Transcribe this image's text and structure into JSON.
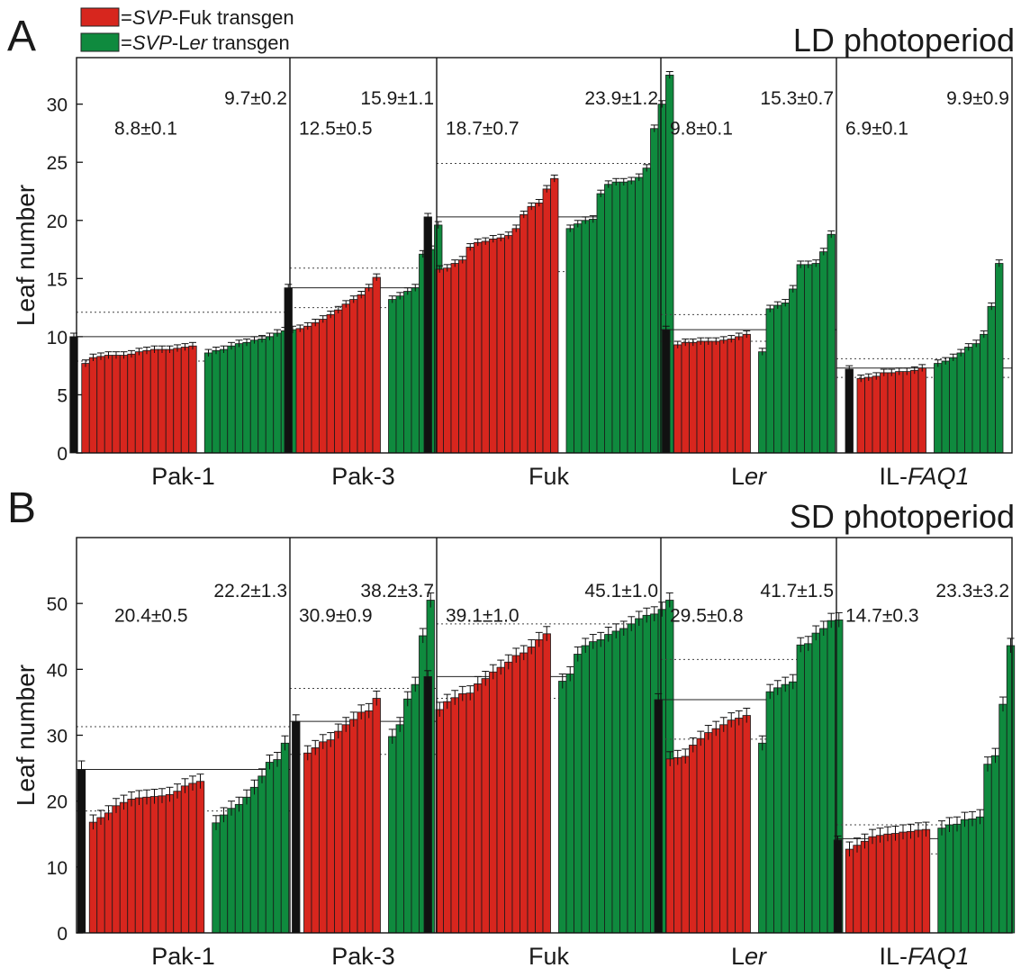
{
  "legend": {
    "items": [
      {
        "prefix": "=",
        "italic": "SVP",
        "mid": "-Fuk transgen",
        "italic2": "",
        "suffix": "",
        "color": "#d7261e"
      },
      {
        "prefix": "=",
        "italic": "SVP",
        "mid": "-L",
        "italic2": "er",
        "suffix": " transgen",
        "color": "#0f8a3e"
      }
    ]
  },
  "colors": {
    "parent": "#111111",
    "fuk_transgene": "#d7261e",
    "ler_transgene": "#0f8a3e"
  },
  "chart_data": [
    {
      "panel_letter": "A",
      "title": "LD photoperiod",
      "type": "bar",
      "ylabel": "Leaf number",
      "ylim": [
        0,
        34
      ],
      "yticks": [
        0,
        5,
        10,
        15,
        20,
        25,
        30
      ],
      "groups": [
        {
          "name": "Pak-1",
          "name_plain": "Pak-1",
          "name_italic": "",
          "parent": 10.0,
          "parent_err": 0.3,
          "ann_red": "8.8±0.1",
          "ann_green": "9.7±0.2",
          "parent_line": 10.0,
          "dotted_lines": [
            12.1,
            7.9
          ],
          "fuk_transgene": [
            7.7,
            8.2,
            8.3,
            8.4,
            8.4,
            8.4,
            8.5,
            8.7,
            8.8,
            8.9,
            8.9,
            8.9,
            9.0,
            9.1,
            9.2
          ],
          "ler_transgene": [
            8.6,
            8.8,
            8.9,
            9.2,
            9.4,
            9.5,
            9.7,
            9.8,
            10.0,
            10.3,
            10.5,
            10.6
          ]
        },
        {
          "name": "Pak-3",
          "name_plain": "Pak-3",
          "name_italic": "",
          "parent": 14.2,
          "parent_err": 0.3,
          "ann_red": "12.5±0.5",
          "ann_green": "15.9±1.1",
          "parent_line": 14.2,
          "dotted_lines": [
            15.9,
            12.5
          ],
          "fuk_transgene": [
            10.7,
            10.9,
            11.2,
            11.5,
            11.9,
            12.3,
            12.8,
            13.2,
            13.6,
            14.2,
            15.1
          ],
          "ler_transgene": [
            13.2,
            13.5,
            13.9,
            14.2,
            17.1,
            17.5,
            19.6
          ]
        },
        {
          "name": "Fuk",
          "name_plain": "Fuk",
          "name_italic": "",
          "parent": 20.3,
          "parent_err": 0.3,
          "ann_red": "18.7±0.7",
          "ann_green": "23.9±1.2",
          "parent_line": 20.3,
          "dotted_lines": [
            24.9,
            15.6
          ],
          "fuk_transgene": [
            15.8,
            15.9,
            16.3,
            16.6,
            17.7,
            18.1,
            18.2,
            18.4,
            18.5,
            18.7,
            19.3,
            20.5,
            21.2,
            21.5,
            22.7,
            23.6
          ],
          "ler_transgene": [
            19.3,
            19.7,
            20.0,
            20.1,
            22.3,
            23.1,
            23.3,
            23.3,
            23.4,
            23.7,
            24.5,
            27.9,
            30.0,
            32.5
          ]
        },
        {
          "name": "Ler",
          "name_plain": "L",
          "name_italic": "er",
          "parent": 10.6,
          "parent_err": 0.3,
          "ann_red": "9.8±0.1",
          "ann_green": "15.3±0.7",
          "parent_line": 10.6,
          "dotted_lines": [
            11.9,
            9.6
          ],
          "fuk_transgene": [
            9.3,
            9.5,
            9.5,
            9.6,
            9.6,
            9.6,
            9.7,
            9.8,
            10.0,
            10.2
          ],
          "ler_transgene": [
            8.7,
            12.4,
            12.7,
            12.9,
            14.1,
            16.2,
            16.2,
            16.3,
            17.3,
            18.8
          ]
        },
        {
          "name": "IL-FAQ1",
          "name_plain": "IL-",
          "name_italic": "FAQ1",
          "parent": 7.2,
          "parent_err": 0.3,
          "ann_red": "6.9±0.1",
          "ann_green": "9.9±0.9",
          "parent_line": 7.3,
          "dotted_lines": [
            8.1,
            6.5
          ],
          "fuk_transgene": [
            6.4,
            6.5,
            6.6,
            6.9,
            6.9,
            7.0,
            7.0,
            7.1,
            7.3
          ],
          "ler_transgene": [
            7.7,
            7.9,
            8.2,
            8.6,
            9.1,
            9.4,
            10.2,
            12.6,
            16.3
          ]
        }
      ]
    },
    {
      "panel_letter": "B",
      "title": "SD photoperiod",
      "type": "bar",
      "ylabel": "Leaf number",
      "ylim": [
        0,
        60
      ],
      "yticks": [
        0,
        10,
        20,
        30,
        40,
        50
      ],
      "groups": [
        {
          "name": "Pak-1",
          "name_plain": "Pak-1",
          "name_italic": "",
          "parent": 24.8,
          "parent_err": 1.3,
          "ann_red": "20.4±0.5",
          "ann_green": "22.2±1.3",
          "parent_line": 24.8,
          "dotted_lines": [
            31.3,
            18.5
          ],
          "fuk_transgene": [
            16.8,
            17.5,
            18.2,
            19.3,
            19.8,
            20.3,
            20.5,
            20.6,
            20.7,
            20.8,
            21.0,
            21.5,
            22.3,
            22.7,
            23.0
          ],
          "ler_transgene": [
            16.7,
            17.9,
            18.9,
            19.5,
            20.6,
            22.1,
            23.8,
            25.9,
            26.3,
            28.8
          ]
        },
        {
          "name": "Pak-3",
          "name_plain": "Pak-3",
          "name_italic": "",
          "parent": 32.1,
          "parent_err": 1.0,
          "ann_red": "30.9±0.9",
          "ann_green": "38.2±3.7",
          "parent_line": 32.1,
          "dotted_lines": [
            37.1,
            27.1
          ],
          "fuk_transgene": [
            27.3,
            28.1,
            29.0,
            29.3,
            30.6,
            31.6,
            32.4,
            33.5,
            33.7,
            35.6
          ],
          "ler_transgene": [
            29.8,
            31.6,
            35.5,
            37.7,
            45.1,
            50.5
          ]
        },
        {
          "name": "Fuk",
          "name_plain": "Fuk",
          "name_italic": "",
          "parent": 38.9,
          "parent_err": 0.9,
          "ann_red": "39.1±1.0",
          "ann_green": "45.1±1.0",
          "parent_line": 38.9,
          "dotted_lines": [
            46.9,
            35.6
          ],
          "fuk_transgene": [
            33.9,
            35.1,
            35.7,
            36.3,
            36.4,
            37.8,
            38.6,
            39.6,
            40.3,
            41.1,
            42.1,
            42.5,
            43.4,
            44.5,
            45.4
          ],
          "ler_transgene": [
            38.2,
            39.3,
            42.3,
            43.6,
            44.2,
            44.5,
            45.3,
            45.8,
            46.2,
            46.9,
            47.7,
            48.2,
            48.4,
            49.1,
            50.5
          ]
        },
        {
          "name": "Ler",
          "name_plain": "L",
          "name_italic": "er",
          "parent": 35.4,
          "parent_err": 0.9,
          "ann_red": "29.5±0.8",
          "ann_green": "41.7±1.5",
          "parent_line": 35.4,
          "dotted_lines": [
            41.5,
            29.4
          ],
          "fuk_transgene": [
            26.4,
            26.6,
            26.8,
            28.5,
            29.5,
            30.4,
            31.0,
            31.6,
            32.3,
            32.6,
            33.0
          ],
          "ler_transgene": [
            28.8,
            36.6,
            37.2,
            37.7,
            38.1,
            43.7,
            43.9,
            45.5,
            46.2,
            47.4,
            47.5
          ]
        },
        {
          "name": "IL-FAQ1",
          "name_plain": "IL-",
          "name_italic": "FAQ1",
          "parent": 14.1,
          "parent_err": 0.6,
          "ann_red": "14.7±0.3",
          "ann_green": "23.3±3.2",
          "parent_line": 14.3,
          "dotted_lines": [
            16.4,
            12.0
          ],
          "fuk_transgene": [
            12.7,
            13.3,
            13.9,
            14.6,
            14.8,
            15.0,
            15.1,
            15.3,
            15.4,
            15.6,
            15.7
          ],
          "ler_transgene": [
            15.9,
            16.4,
            16.5,
            17.2,
            17.3,
            17.6,
            25.6,
            26.9,
            34.7,
            43.6
          ]
        }
      ]
    }
  ]
}
